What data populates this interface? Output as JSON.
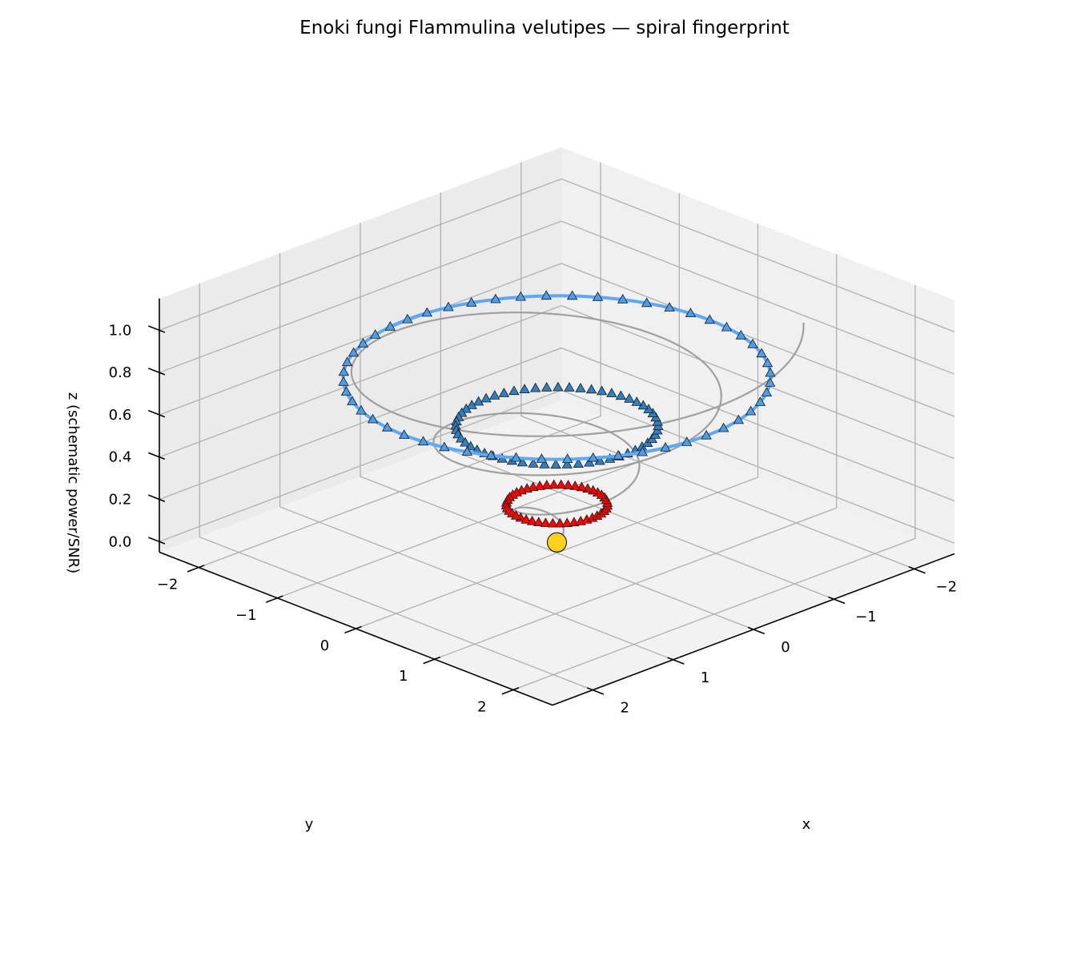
{
  "chart_data": {
    "type": "3d-scatter",
    "title": "Enoki fungi Flammulina velutipes — spiral fingerprint",
    "xlabel": "x",
    "ylabel": "y",
    "zlabel": "z (schematic power/SNR)",
    "x_ticks": [
      "−2",
      "−1",
      "0",
      "1",
      "2"
    ],
    "y_ticks": [
      "−2",
      "−1",
      "0",
      "1",
      "2"
    ],
    "z_ticks": [
      "0.0",
      "0.2",
      "0.4",
      "0.6",
      "0.8",
      "1.0"
    ],
    "xlim": [
      -2.5,
      2.5
    ],
    "ylim": [
      -2.5,
      2.5
    ],
    "zlim": [
      -0.05,
      1.15
    ],
    "grid": true,
    "view": {
      "elev": 22,
      "azim": 45
    },
    "spiral": {
      "turns": 3,
      "radius_end": 2.2,
      "z_end": 1.0,
      "color": "#a0a0a0"
    },
    "center_point": {
      "x": 0,
      "y": 0,
      "z": 0.0,
      "color": "#ffd11a"
    },
    "rings": [
      {
        "radius": 0.45,
        "z": 0.18,
        "count": 44,
        "marker": "triangle",
        "color": "#ff0000",
        "line_color": null
      },
      {
        "radius": 0.9,
        "z": 0.55,
        "count": 56,
        "marker": "triangle",
        "color": "#2f7fc1",
        "line_color": null
      },
      {
        "radius": 1.9,
        "z": 0.78,
        "count": 52,
        "marker": "triangle",
        "color": "#4d9de8",
        "line_color": "#5fa8f5"
      }
    ]
  }
}
